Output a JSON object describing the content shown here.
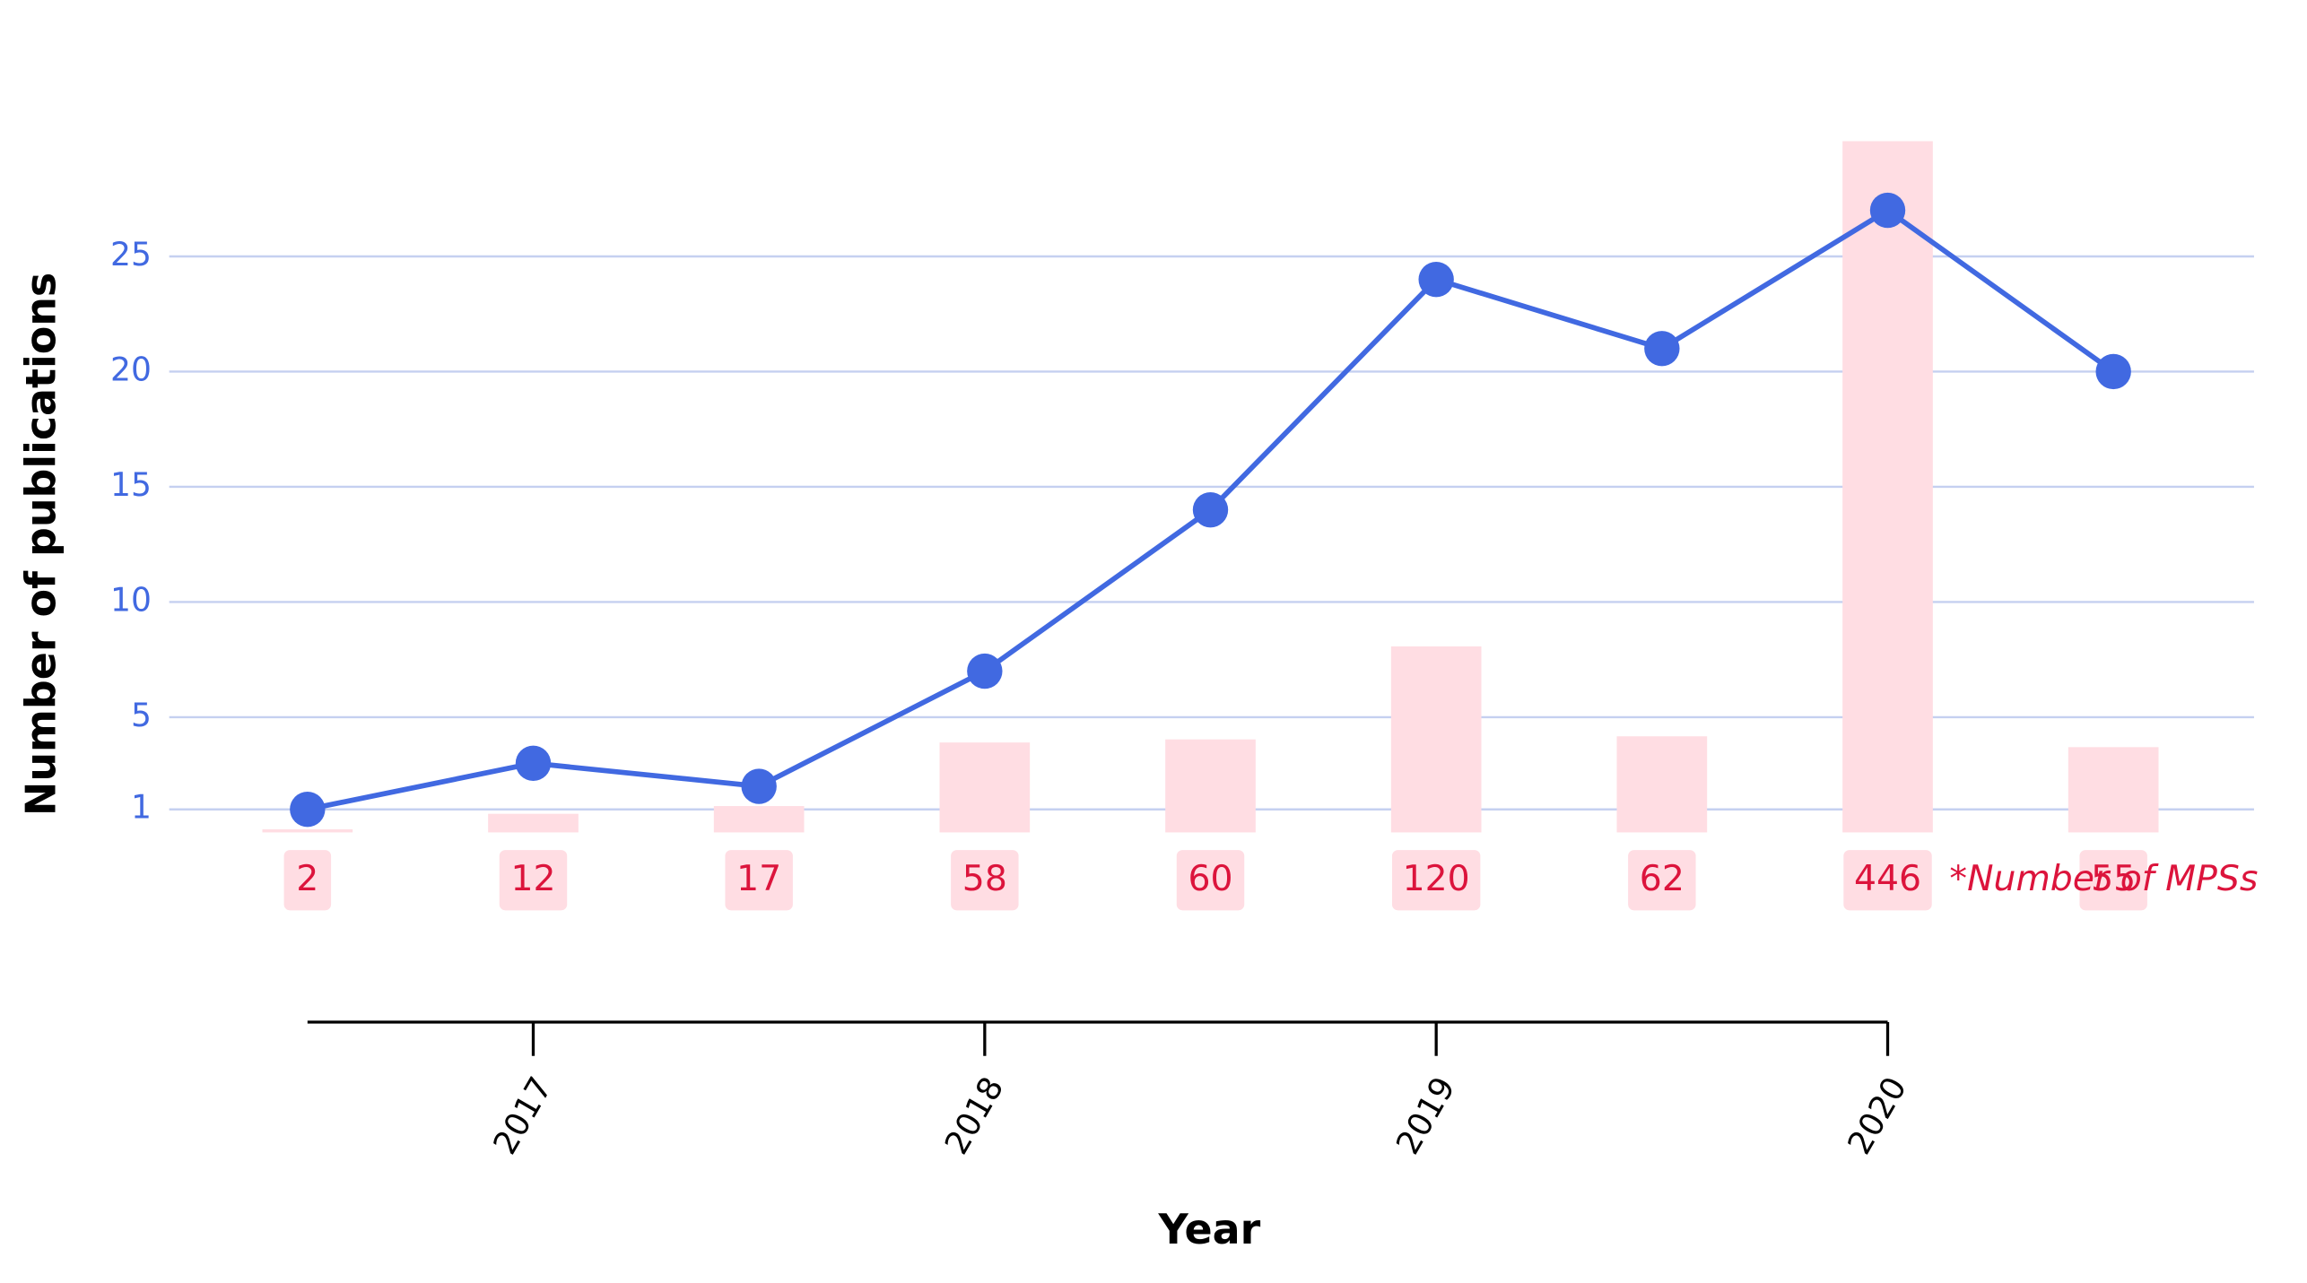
{
  "chart_data": {
    "type": "line",
    "x_title": "Year",
    "y_title": "Number of publications",
    "annotation": "*Number of MPSs",
    "x": [
      2016.5,
      2017,
      2017.5,
      2018,
      2018.5,
      2019,
      2019.5,
      2020,
      2020.5
    ],
    "xlim": [
      2016.5,
      2020
    ],
    "xticks": [
      2017,
      2018,
      2019,
      2020
    ],
    "ylim": [
      0,
      30
    ],
    "yticks": [
      1,
      5,
      10,
      15,
      20,
      25
    ],
    "y2lim": [
      0,
      446
    ],
    "grid": true,
    "series": [
      {
        "type": "bar",
        "axis": "y2",
        "color": "#ffdde3",
        "label_color": "#dc143c",
        "values": [
          2,
          12,
          17,
          58,
          60,
          120,
          62,
          446,
          55
        ]
      },
      {
        "type": "line",
        "color": "#4169e1",
        "values": [
          1,
          3,
          2,
          7,
          14,
          24,
          21,
          27,
          20
        ]
      }
    ]
  }
}
